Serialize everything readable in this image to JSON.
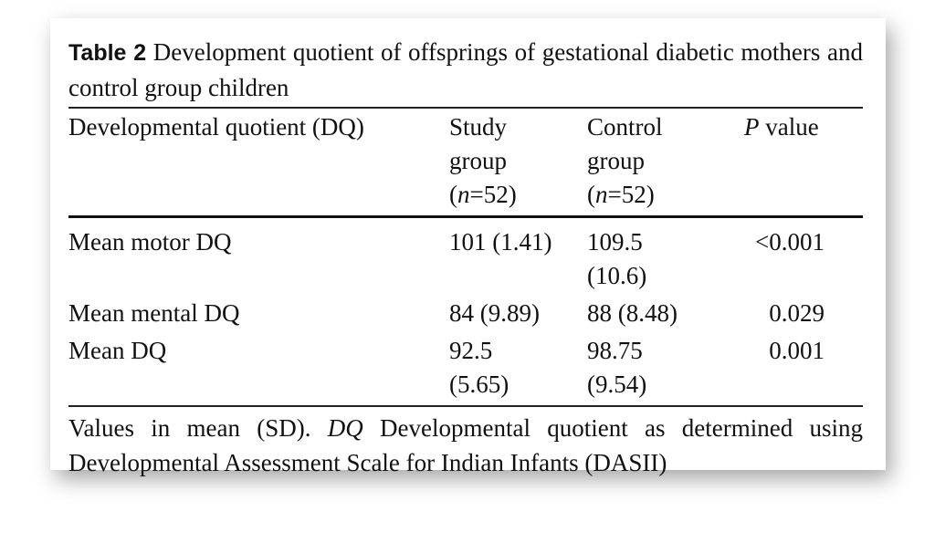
{
  "caption": {
    "label": "Table 2",
    "text": "Development quotient of offsprings of gestational diabetic mothers and control group children"
  },
  "header": [
    [
      [
        {
          "text": "Developmental quotient (DQ)"
        }
      ]
    ],
    [
      [
        {
          "text": "Study"
        }
      ],
      [
        {
          "text": "group"
        }
      ],
      [
        {
          "text": "("
        },
        {
          "text": "n",
          "italic": true
        },
        {
          "text": "=52)"
        }
      ]
    ],
    [
      [
        {
          "text": "Control"
        }
      ],
      [
        {
          "text": "group"
        }
      ],
      [
        {
          "text": "("
        },
        {
          "text": "n",
          "italic": true
        },
        {
          "text": "=52)"
        }
      ]
    ],
    [
      [
        {
          "text": "P",
          "italic": true
        },
        {
          "text": " value"
        }
      ]
    ]
  ],
  "rows": [
    [
      [
        "Mean motor DQ"
      ],
      [
        "101 (1.41)"
      ],
      [
        "109.5",
        "(10.6)"
      ],
      [
        "<0.001"
      ]
    ],
    [
      [
        "Mean mental DQ"
      ],
      [
        "84 (9.89)"
      ],
      [
        "88 (8.48)"
      ],
      [
        "0.029"
      ]
    ],
    [
      [
        "Mean DQ"
      ],
      [
        "92.5",
        "(5.65)"
      ],
      [
        "98.75",
        "(9.54)"
      ],
      [
        "0.001"
      ]
    ]
  ],
  "footnote": [
    {
      "text": "Values in mean (SD). "
    },
    {
      "text": "DQ",
      "italic": true
    },
    {
      "text": " Developmental quotient as determined using Developmental Assessment Scale for Indian Infants (DASII)"
    }
  ]
}
